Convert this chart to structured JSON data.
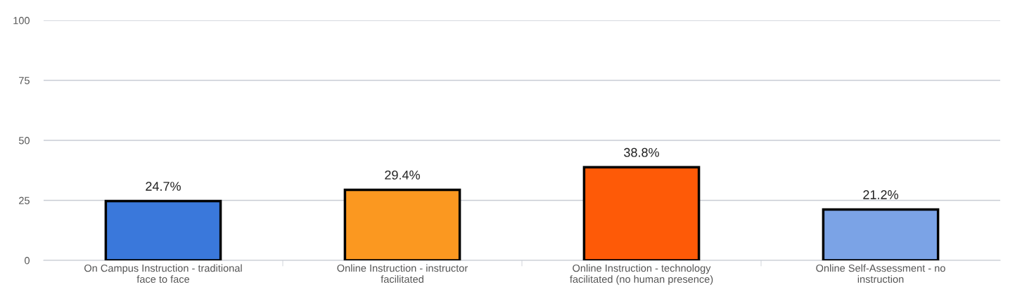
{
  "chart_data": {
    "type": "bar",
    "categories": [
      "On Campus Instruction - traditional\nface to face",
      "Online Instruction - instructor\nfacilitated",
      "Online Instruction - technology\nfacilitated (no human presence)",
      "Online Self-Assessment - no\ninstruction"
    ],
    "values": [
      24.7,
      29.4,
      38.8,
      21.2
    ],
    "colors": [
      "#3a78db",
      "#fb9820",
      "#fe5a07",
      "#7ba3e6"
    ],
    "value_labels": [
      "24.7%",
      "29.4%",
      "38.8%",
      "21.2%"
    ],
    "ylim": [
      0,
      100
    ],
    "yticks": [
      0,
      25,
      50,
      75,
      100
    ],
    "grid": "y"
  }
}
